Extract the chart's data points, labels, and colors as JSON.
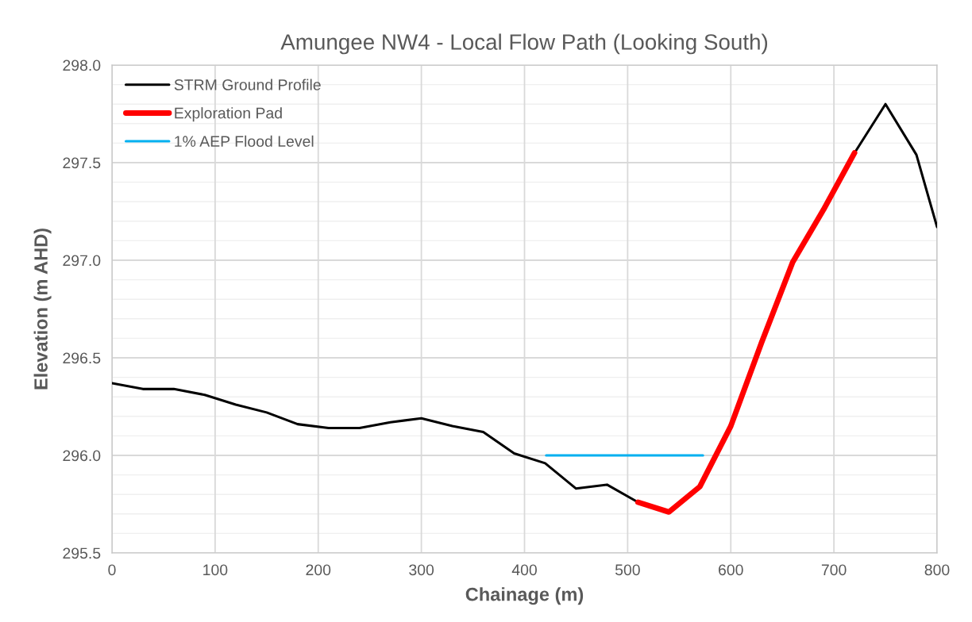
{
  "chart_data": {
    "type": "line",
    "title": "Amungee NW4 - Local Flow Path (Looking South)",
    "xlabel": "Chainage (m)",
    "ylabel": "Elevation (m AHD)",
    "series": [
      {
        "name": "STRM Ground Profile",
        "color": "#000000",
        "x": [
          0,
          30,
          60,
          90,
          120,
          150,
          180,
          210,
          240,
          270,
          300,
          330,
          360,
          390,
          420,
          450,
          480,
          510,
          540,
          570,
          600,
          630,
          660,
          690,
          720,
          750,
          780,
          800
        ],
        "values": [
          296.37,
          296.34,
          296.34,
          296.31,
          296.26,
          296.22,
          296.16,
          296.14,
          296.14,
          296.17,
          296.19,
          296.15,
          296.12,
          296.01,
          295.96,
          295.83,
          295.85,
          295.76,
          null,
          null,
          null,
          null,
          null,
          null,
          297.55,
          297.8,
          297.54,
          297.17
        ]
      },
      {
        "name": "Exploration Pad",
        "color": "#ff0000",
        "x": [
          510,
          540,
          570,
          600,
          630,
          660,
          690,
          720
        ],
        "values": [
          295.76,
          295.71,
          295.84,
          296.15,
          296.58,
          296.99,
          297.26,
          297.55
        ]
      },
      {
        "name": "1% AEP Flood Level",
        "color": "#00b0f0",
        "x": [
          421,
          573
        ],
        "values": [
          296.0,
          296.0
        ]
      }
    ],
    "xlim": [
      0,
      800
    ],
    "xticks": [
      0,
      100,
      200,
      300,
      400,
      500,
      600,
      700,
      800
    ],
    "ylim": [
      295.5,
      298.0
    ],
    "yticks": [
      {
        "value": 295.5,
        "label": "295.5"
      },
      {
        "value": 296.0,
        "label": "296.0"
      },
      {
        "value": 296.5,
        "label": "296.5"
      },
      {
        "value": 297.0,
        "label": "297.0"
      },
      {
        "value": 297.5,
        "label": "297.5"
      },
      {
        "value": 298.0,
        "label": "298.0"
      }
    ],
    "grid": true,
    "legend": "top left",
    "marker": "none",
    "line_style": "solid"
  }
}
